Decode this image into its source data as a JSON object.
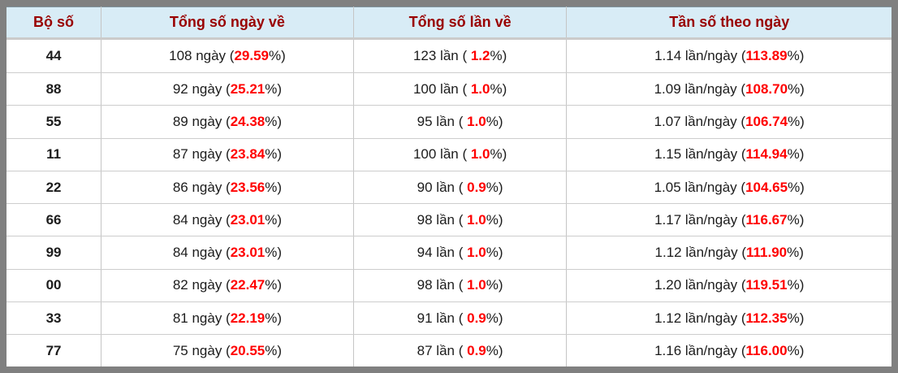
{
  "chart_data": {
    "type": "table",
    "columns": [
      "Bộ số",
      "Tổng số ngày về",
      "Tổng số lần về",
      "Tần số theo ngày"
    ],
    "units": {
      "days": "ngày",
      "times": "lần",
      "freq": "lần/ngày"
    },
    "rows": [
      {
        "pair": "44",
        "days": "108",
        "days_pct": "29.59",
        "times": "123",
        "times_pct": "1.2",
        "freq": "1.14",
        "freq_pct": "113.89"
      },
      {
        "pair": "88",
        "days": "92",
        "days_pct": "25.21",
        "times": "100",
        "times_pct": "1.0",
        "freq": "1.09",
        "freq_pct": "108.70"
      },
      {
        "pair": "55",
        "days": "89",
        "days_pct": "24.38",
        "times": "95",
        "times_pct": "1.0",
        "freq": "1.07",
        "freq_pct": "106.74"
      },
      {
        "pair": "11",
        "days": "87",
        "days_pct": "23.84",
        "times": "100",
        "times_pct": "1.0",
        "freq": "1.15",
        "freq_pct": "114.94"
      },
      {
        "pair": "22",
        "days": "86",
        "days_pct": "23.56",
        "times": "90",
        "times_pct": "0.9",
        "freq": "1.05",
        "freq_pct": "104.65"
      },
      {
        "pair": "66",
        "days": "84",
        "days_pct": "23.01",
        "times": "98",
        "times_pct": "1.0",
        "freq": "1.17",
        "freq_pct": "116.67"
      },
      {
        "pair": "99",
        "days": "84",
        "days_pct": "23.01",
        "times": "94",
        "times_pct": "1.0",
        "freq": "1.12",
        "freq_pct": "111.90"
      },
      {
        "pair": "00",
        "days": "82",
        "days_pct": "22.47",
        "times": "98",
        "times_pct": "1.0",
        "freq": "1.20",
        "freq_pct": "119.51"
      },
      {
        "pair": "33",
        "days": "81",
        "days_pct": "22.19",
        "times": "91",
        "times_pct": "0.9",
        "freq": "1.12",
        "freq_pct": "112.35"
      },
      {
        "pair": "77",
        "days": "75",
        "days_pct": "20.55",
        "times": "87",
        "times_pct": "0.9",
        "freq": "1.16",
        "freq_pct": "116.00"
      }
    ],
    "layout": {
      "grid": "on",
      "header_position": "top"
    }
  },
  "colors": {
    "frame": "#808080",
    "header_bg": "#d8ecf6",
    "header_text": "#990000",
    "accent_red": "#ff0000",
    "grid_line": "#c5c5c5"
  }
}
